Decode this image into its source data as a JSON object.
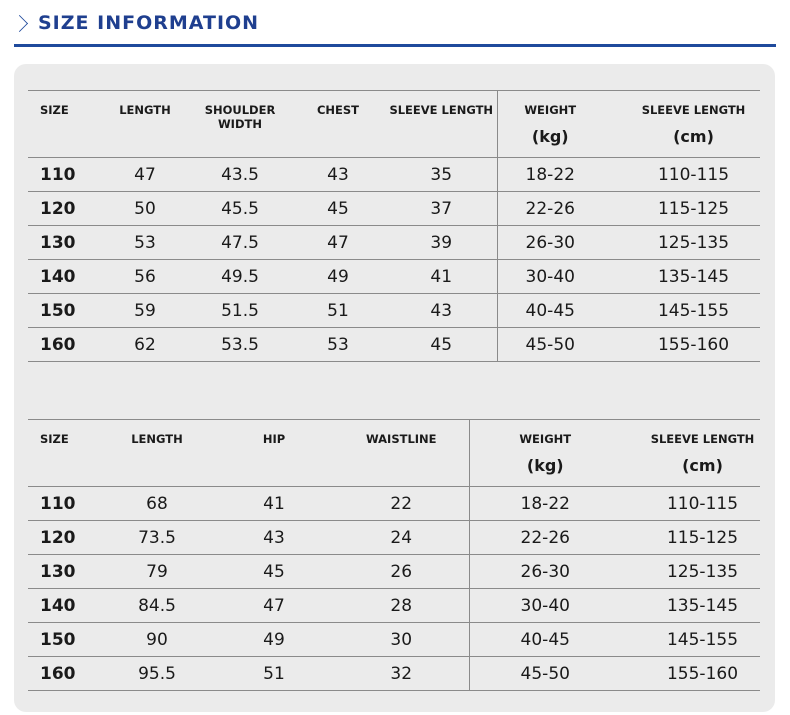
{
  "header": {
    "title": "SIZE INFORMATION",
    "icon": "chevron-right-icon",
    "accent": "#1f4a9c"
  },
  "top_table": {
    "headers": [
      "SIZE",
      "LENGTH",
      "SHOULDER WIDTH",
      "CHEST",
      "SLEEVE LENGTH",
      "WEIGHT",
      "SLEEVE LENGTH"
    ],
    "units": {
      "weight": "(kg)",
      "sleeve": "(cm)"
    },
    "rows": [
      [
        "110",
        "47",
        "43.5",
        "43",
        "35",
        "18-22",
        "110-115"
      ],
      [
        "120",
        "50",
        "45.5",
        "45",
        "37",
        "22-26",
        "115-125"
      ],
      [
        "130",
        "53",
        "47.5",
        "47",
        "39",
        "26-30",
        "125-135"
      ],
      [
        "140",
        "56",
        "49.5",
        "49",
        "41",
        "30-40",
        "135-145"
      ],
      [
        "150",
        "59",
        "51.5",
        "51",
        "43",
        "40-45",
        "145-155"
      ],
      [
        "160",
        "62",
        "53.5",
        "53",
        "45",
        "45-50",
        "155-160"
      ]
    ]
  },
  "bottom_table": {
    "headers": [
      "SIZE",
      "LENGTH",
      "HIP",
      "WAISTLINE",
      "WEIGHT",
      "SLEEVE LENGTH"
    ],
    "units": {
      "weight": "(kg)",
      "sleeve": "(cm)"
    },
    "rows": [
      [
        "110",
        "68",
        "41",
        "22",
        "18-22",
        "110-115"
      ],
      [
        "120",
        "73.5",
        "43",
        "24",
        "22-26",
        "115-125"
      ],
      [
        "130",
        "79",
        "45",
        "26",
        "26-30",
        "125-135"
      ],
      [
        "140",
        "84.5",
        "47",
        "28",
        "30-40",
        "135-145"
      ],
      [
        "150",
        "90",
        "49",
        "30",
        "40-45",
        "145-155"
      ],
      [
        "160",
        "95.5",
        "51",
        "32",
        "45-50",
        "155-160"
      ]
    ]
  }
}
